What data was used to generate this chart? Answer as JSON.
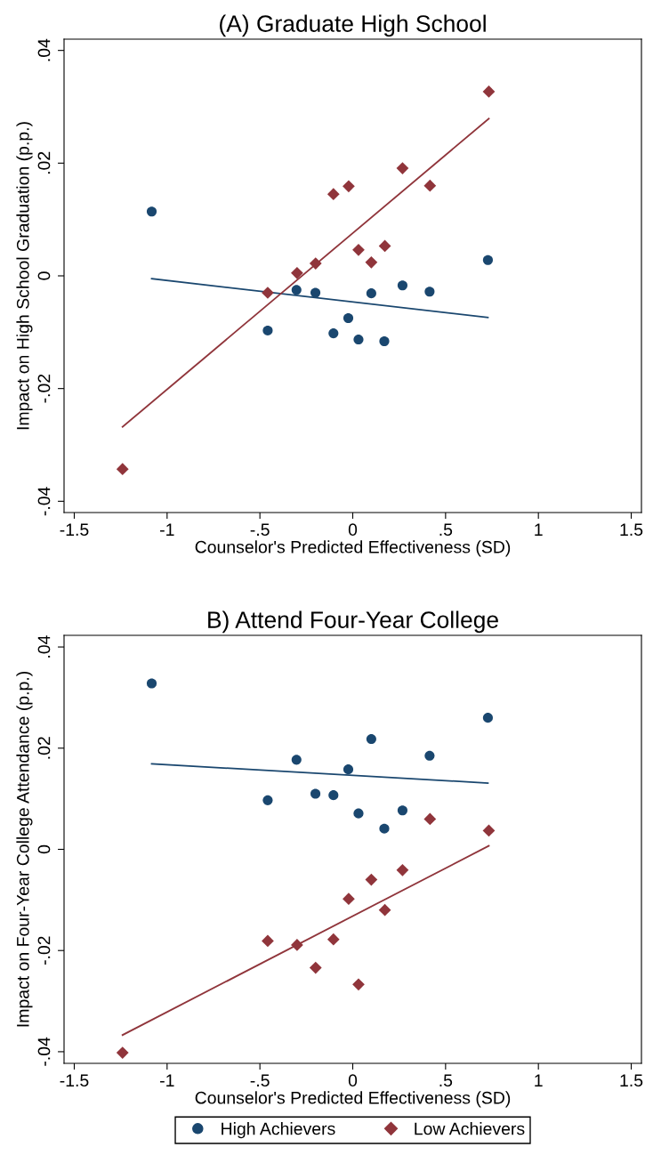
{
  "chart_data": [
    {
      "type": "scatter",
      "title": "(A) Graduate High School",
      "xlabel": "Counselor's Predicted Effectiveness (SD)",
      "ylabel": "Impact on High School Graduation (p.p.)",
      "xlim": [
        -1.555,
        1.555
      ],
      "xticks": [
        {
          "value": -1.5,
          "label": "-1.5"
        },
        {
          "value": -1,
          "label": "-1"
        },
        {
          "value": -0.5,
          "label": "-.5"
        },
        {
          "value": 0,
          "label": "0"
        },
        {
          "value": 0.5,
          "label": ".5"
        },
        {
          "value": 1,
          "label": "1"
        },
        {
          "value": 1.5,
          "label": "1.5"
        }
      ],
      "ylim": [
        -0.042,
        0.042
      ],
      "yticks": [
        {
          "value": -0.04,
          "label": "-.04"
        },
        {
          "value": -0.02,
          "label": "-.02"
        },
        {
          "value": 0,
          "label": "0"
        },
        {
          "value": 0.02,
          "label": ".02"
        },
        {
          "value": 0.04,
          "label": ".04"
        }
      ],
      "grid": false,
      "legend": false,
      "series": [
        {
          "marker": "circle",
          "color": "#1a476f",
          "x": [
            -1.083,
            -0.458,
            -0.303,
            -0.201,
            -0.104,
            -0.024,
            0.031,
            0.1,
            0.17,
            0.268,
            0.414,
            0.728
          ],
          "values": [
            0.0114,
            -0.0097,
            -0.0025,
            -0.003,
            -0.0102,
            -0.0075,
            -0.0113,
            -0.0031,
            -0.0116,
            -0.0017,
            -0.0028,
            0.0028
          ]
        },
        {
          "marker": "diamond",
          "color": "#90353b",
          "x": [
            -1.24,
            -0.458,
            -0.3,
            -0.2,
            -0.104,
            -0.022,
            0.031,
            0.1,
            0.173,
            0.268,
            0.416,
            0.733
          ],
          "values": [
            -0.0343,
            -0.003,
            0.0005,
            0.0022,
            0.0145,
            0.0159,
            0.0046,
            0.0024,
            0.0053,
            0.0191,
            0.016,
            0.0327
          ]
        },
        {
          "type": "line",
          "color": "#1a476f",
          "x": [
            -1.083,
            0.728
          ],
          "values": [
            -0.0005,
            -0.0074
          ]
        },
        {
          "type": "line",
          "color": "#90353b",
          "x": [
            -1.24,
            0.733
          ],
          "values": [
            -0.0268,
            0.0279
          ]
        }
      ]
    },
    {
      "type": "scatter",
      "title": "B) Attend Four-Year College",
      "xlabel": "Counselor's Predicted Effectiveness (SD)",
      "ylabel": "Impact on Four-Year College Attendance (p.p.)",
      "xlim": [
        -1.555,
        1.555
      ],
      "xticks": [
        {
          "value": -1.5,
          "label": "-1.5"
        },
        {
          "value": -1,
          "label": "-1"
        },
        {
          "value": -0.5,
          "label": "-.5"
        },
        {
          "value": 0,
          "label": "0"
        },
        {
          "value": 0.5,
          "label": ".5"
        },
        {
          "value": 1,
          "label": "1"
        },
        {
          "value": 1.5,
          "label": "1.5"
        }
      ],
      "ylim": [
        -0.0423,
        0.0423
      ],
      "yticks": [
        {
          "value": -0.04,
          "label": "-.04"
        },
        {
          "value": -0.02,
          "label": "-.02"
        },
        {
          "value": 0,
          "label": "0"
        },
        {
          "value": 0.02,
          "label": ".02"
        },
        {
          "value": 0.04,
          "label": ".04"
        }
      ],
      "grid": false,
      "legend": "bottom",
      "series": [
        {
          "name": "High Achievers",
          "marker": "circle",
          "color": "#1a476f",
          "x": [
            -1.083,
            -0.458,
            -0.303,
            -0.201,
            -0.104,
            -0.024,
            0.031,
            0.1,
            0.17,
            0.268,
            0.414,
            0.728
          ],
          "values": [
            0.0328,
            0.0097,
            0.0177,
            0.011,
            0.0107,
            0.0158,
            0.0071,
            0.0218,
            0.0041,
            0.0077,
            0.0185,
            0.026
          ]
        },
        {
          "name": "Low Achievers",
          "marker": "diamond",
          "color": "#90353b",
          "x": [
            -1.24,
            -0.458,
            -0.3,
            -0.2,
            -0.104,
            -0.022,
            0.031,
            0.1,
            0.173,
            0.268,
            0.416,
            0.733
          ],
          "values": [
            -0.0402,
            -0.0181,
            -0.0189,
            -0.0234,
            -0.0178,
            -0.0098,
            -0.0267,
            -0.006,
            -0.012,
            -0.0041,
            0.006,
            0.0037
          ]
        },
        {
          "type": "line",
          "color": "#1a476f",
          "x": [
            -1.083,
            0.728
          ],
          "values": [
            0.0169,
            0.0131
          ]
        },
        {
          "type": "line",
          "color": "#90353b",
          "x": [
            -1.24,
            0.733
          ],
          "values": [
            -0.0367,
            0.0007
          ]
        }
      ]
    }
  ]
}
